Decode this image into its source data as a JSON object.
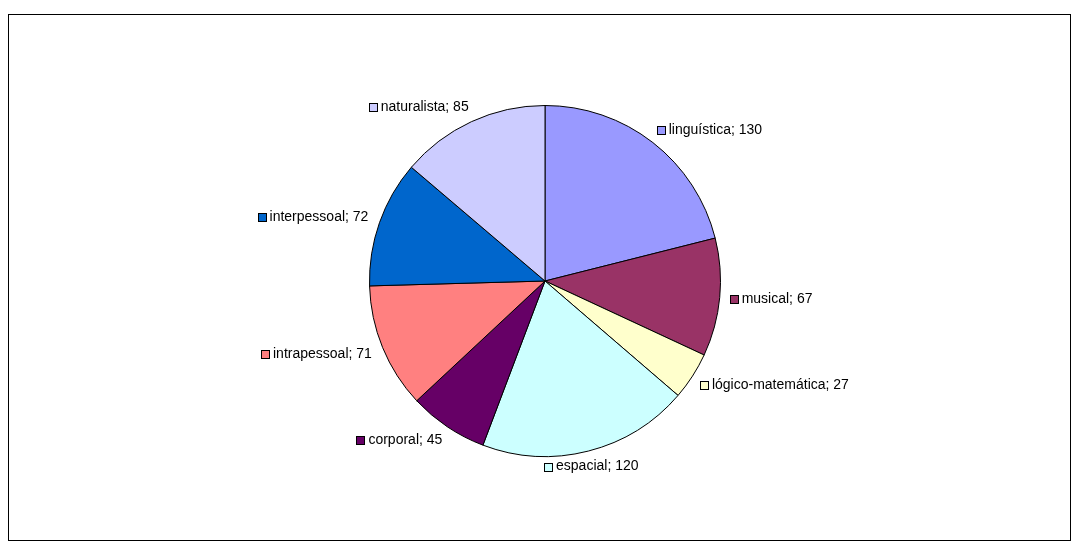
{
  "chart_data": {
    "type": "pie",
    "categories": [
      "linguística",
      "musical",
      "lógico-matemática",
      "espacial",
      "corporal",
      "intrapessoal",
      "interpessoal",
      "naturalista"
    ],
    "values": [
      130,
      67,
      27,
      120,
      45,
      71,
      72,
      85
    ],
    "colors": [
      "#9999ff",
      "#993366",
      "#ffffcc",
      "#ccffff",
      "#660066",
      "#ff8080",
      "#0066cc",
      "#ccccff"
    ],
    "value_labels": [
      "; 130",
      "; 67",
      "; 27",
      "; 120",
      "; 45",
      "; 71",
      "; 72",
      "; 85"
    ],
    "legend": "right"
  }
}
